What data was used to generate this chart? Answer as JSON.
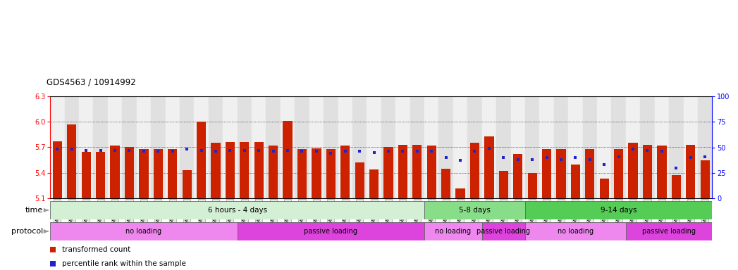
{
  "title": "GDS4563 / 10914992",
  "ylim": [
    5.1,
    6.3
  ],
  "yticks": [
    5.1,
    5.4,
    5.7,
    6.0,
    6.3
  ],
  "right_yticks": [
    0,
    25,
    50,
    75,
    100
  ],
  "samples": [
    "GSM930471",
    "GSM930472",
    "GSM930473",
    "GSM930474",
    "GSM930475",
    "GSM930476",
    "GSM930477",
    "GSM930478",
    "GSM930479",
    "GSM930480",
    "GSM930481",
    "GSM930482",
    "GSM930483",
    "GSM930494",
    "GSM930495",
    "GSM930496",
    "GSM930497",
    "GSM930498",
    "GSM930499",
    "GSM930500",
    "GSM930501",
    "GSM930502",
    "GSM930503",
    "GSM930504",
    "GSM930505",
    "GSM930506",
    "GSM930484",
    "GSM930485",
    "GSM930486",
    "GSM930487",
    "GSM930507",
    "GSM930508",
    "GSM930509",
    "GSM930510",
    "GSM930488",
    "GSM930489",
    "GSM930490",
    "GSM930491",
    "GSM930492",
    "GSM930493",
    "GSM930511",
    "GSM930512",
    "GSM930513",
    "GSM930514",
    "GSM930515",
    "GSM930516"
  ],
  "bar_values": [
    5.77,
    5.97,
    5.65,
    5.65,
    5.72,
    5.7,
    5.68,
    5.68,
    5.68,
    5.43,
    6.0,
    5.75,
    5.76,
    5.76,
    5.76,
    5.72,
    6.01,
    5.68,
    5.69,
    5.68,
    5.72,
    5.52,
    5.44,
    5.7,
    5.73,
    5.73,
    5.72,
    5.45,
    5.22,
    5.75,
    5.83,
    5.42,
    5.62,
    5.4,
    5.68,
    5.68,
    5.5,
    5.68,
    5.33,
    5.68,
    5.75,
    5.73,
    5.72,
    5.37,
    5.73,
    5.55
  ],
  "percentile_values": [
    48,
    48,
    47,
    47,
    47,
    47,
    46,
    46,
    46,
    48,
    47,
    46,
    47,
    47,
    47,
    46,
    47,
    46,
    46,
    44,
    46,
    46,
    45,
    46,
    46,
    46,
    46,
    40,
    37,
    46,
    49,
    40,
    38,
    38,
    40,
    38,
    40,
    38,
    33,
    41,
    48,
    47,
    46,
    30,
    40,
    41
  ],
  "bar_color": "#cc2200",
  "dot_color": "#2222cc",
  "bar_bottom": 5.1,
  "time_groups": [
    {
      "label": "6 hours - 4 days",
      "start": 0,
      "end": 26,
      "color": "#d4f0d4"
    },
    {
      "label": "5-8 days",
      "start": 26,
      "end": 33,
      "color": "#88dd88"
    },
    {
      "label": "9-14 days",
      "start": 33,
      "end": 46,
      "color": "#55cc55"
    }
  ],
  "protocol_groups": [
    {
      "label": "no loading",
      "start": 0,
      "end": 13,
      "color": "#ee88ee"
    },
    {
      "label": "passive loading",
      "start": 13,
      "end": 26,
      "color": "#dd44dd"
    },
    {
      "label": "no loading",
      "start": 26,
      "end": 30,
      "color": "#ee88ee"
    },
    {
      "label": "passive loading",
      "start": 30,
      "end": 33,
      "color": "#dd44dd"
    },
    {
      "label": "no loading",
      "start": 33,
      "end": 40,
      "color": "#ee88ee"
    },
    {
      "label": "passive loading",
      "start": 40,
      "end": 46,
      "color": "#dd44dd"
    }
  ],
  "legend_items": [
    {
      "label": "transformed count",
      "color": "#cc2200"
    },
    {
      "label": "percentile rank within the sample",
      "color": "#2222cc"
    }
  ],
  "background_color": "#ffffff",
  "plot_bg": "#ffffff",
  "col_bg_even": "#f0f0f0",
  "col_bg_odd": "#e0e0e0"
}
